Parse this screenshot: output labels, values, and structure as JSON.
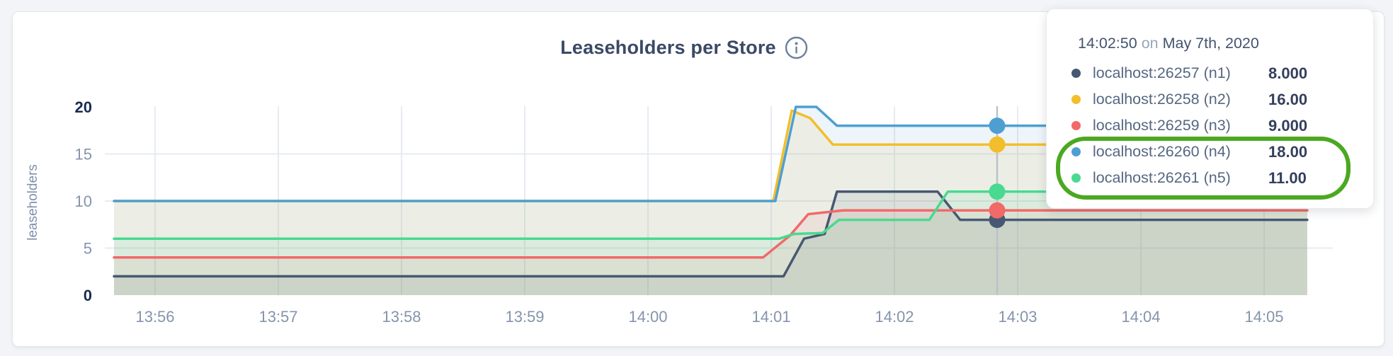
{
  "header": {
    "title": "Leaseholders per Store"
  },
  "tooltip": {
    "time": "14:02:50",
    "conjunction": "on",
    "date": "May 7th, 2020",
    "highlight_color": "#4ba821",
    "rows": [
      {
        "label": "localhost:26257 (n1)",
        "value": "8.000",
        "color": "#475872",
        "highlighted": false
      },
      {
        "label": "localhost:26258 (n2)",
        "value": "16.00",
        "color": "#f2be2c",
        "highlighted": false
      },
      {
        "label": "localhost:26259 (n3)",
        "value": "9.000",
        "color": "#f16969",
        "highlighted": false
      },
      {
        "label": "localhost:26260 (n4)",
        "value": "18.00",
        "color": "#4e9fd1",
        "highlighted": true
      },
      {
        "label": "localhost:26261 (n5)",
        "value": "11.00",
        "color": "#49d990",
        "highlighted": true
      }
    ]
  },
  "chart_data": {
    "type": "line",
    "title": "Leaseholders per Store",
    "xlabel": "",
    "ylabel": "leaseholders",
    "ylim": [
      0,
      20
    ],
    "grid": true,
    "legend_position": "tooltip",
    "fill_opacity": 0.1,
    "x_origin_time": "13:55:00",
    "yticks": [
      {
        "value": 0,
        "label": "0",
        "bold": true
      },
      {
        "value": 5,
        "label": "5",
        "bold": false
      },
      {
        "value": 10,
        "label": "10",
        "bold": false
      },
      {
        "value": 15,
        "label": "15",
        "bold": false
      },
      {
        "value": 20,
        "label": "20",
        "bold": true
      }
    ],
    "xticks": [
      {
        "sec": 60,
        "label": "13:56"
      },
      {
        "sec": 120,
        "label": "13:57"
      },
      {
        "sec": 180,
        "label": "13:58"
      },
      {
        "sec": 240,
        "label": "13:59"
      },
      {
        "sec": 300,
        "label": "14:00"
      },
      {
        "sec": 360,
        "label": "14:01"
      },
      {
        "sec": 420,
        "label": "14:02"
      },
      {
        "sec": 480,
        "label": "14:03"
      },
      {
        "sec": 540,
        "label": "14:04"
      },
      {
        "sec": 600,
        "label": "14:05"
      }
    ],
    "series": [
      {
        "id": "n1",
        "name": "localhost:26257 (n1)",
        "color": "#475872",
        "points": [
          [
            40,
            2
          ],
          [
            366,
            2
          ],
          [
            376,
            6
          ],
          [
            386,
            6.5
          ],
          [
            392,
            11
          ],
          [
            441,
            11
          ],
          [
            452,
            8
          ],
          [
            621,
            8
          ]
        ]
      },
      {
        "id": "n2",
        "name": "localhost:26258 (n2)",
        "color": "#f2be2c",
        "points": [
          [
            40,
            10
          ],
          [
            361,
            10
          ],
          [
            370,
            19.6
          ],
          [
            379,
            18.8
          ],
          [
            390,
            16
          ],
          [
            621,
            16
          ]
        ]
      },
      {
        "id": "n3",
        "name": "localhost:26259 (n3)",
        "color": "#f16969",
        "points": [
          [
            40,
            4
          ],
          [
            356,
            4
          ],
          [
            369,
            6.3
          ],
          [
            378,
            8.6
          ],
          [
            395,
            9
          ],
          [
            621,
            9
          ]
        ]
      },
      {
        "id": "n4",
        "name": "localhost:26260 (n4)",
        "color": "#4e9fd1",
        "points": [
          [
            40,
            10
          ],
          [
            362,
            10
          ],
          [
            372,
            20
          ],
          [
            382,
            20
          ],
          [
            392,
            18
          ],
          [
            621,
            18
          ]
        ]
      },
      {
        "id": "n5",
        "name": "localhost:26261 (n5)",
        "color": "#49d990",
        "points": [
          [
            40,
            6
          ],
          [
            364,
            6
          ],
          [
            371,
            6.5
          ],
          [
            385,
            6.6
          ],
          [
            393,
            8
          ],
          [
            437,
            8
          ],
          [
            446,
            11
          ],
          [
            621,
            11
          ]
        ]
      }
    ],
    "hover": {
      "sec": 470,
      "time": "14:02:50",
      "values": [
        8,
        16,
        9,
        18,
        11
      ]
    },
    "colors": {
      "grid": "#e7ebf1",
      "hover_line": "#bcc1c9",
      "axis_text": "#8593ac",
      "axis_text_bold": "#1b2b50"
    }
  }
}
